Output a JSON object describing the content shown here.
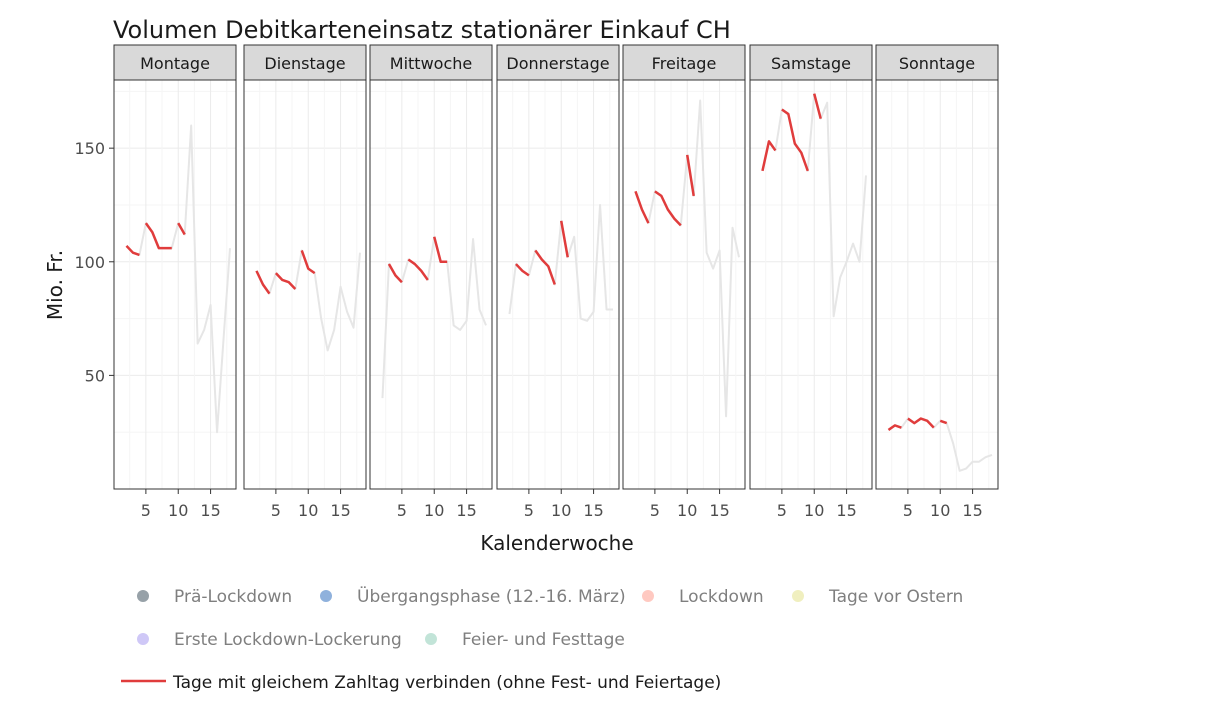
{
  "chart_data": {
    "type": "line",
    "title": "Volumen Debitkarteneinsatz stationärer Einkauf CH",
    "xlabel": "Kalenderwoche",
    "ylabel": "Mio. Fr.",
    "ylim": [
      0,
      180
    ],
    "xlim": [
      1,
      18
    ],
    "x_ticks": [
      5,
      10,
      15
    ],
    "y_ticks": [
      50,
      100,
      150
    ],
    "grid": true,
    "legend_placement": "bottom",
    "legend": [
      {
        "label": "Prä-Lockdown",
        "color": "#97a1a8"
      },
      {
        "label": "Übergangsphase (12.-16. März)",
        "color": "#8fb1dc"
      },
      {
        "label": "Lockdown",
        "color": "#ffc9c1"
      },
      {
        "label": "Tage vor Ostern",
        "color": "#f0efbf"
      },
      {
        "label": "Erste Lockdown-Lockerung",
        "color": "#cfc8f7"
      },
      {
        "label": "Feier- und Festtage",
        "color": "#c2e4d8"
      }
    ],
    "line_legend": {
      "label": "Tage mit gleichem Zahltag  verbinden (ohne Fest- und Feiertage)",
      "color": "#e03c3c"
    },
    "colors": {
      "background_series": "#e6e6e6",
      "highlight": "#e03c3c",
      "strip": "#d9d9d9"
    },
    "facets": [
      {
        "label": "Montage",
        "series": {
          "x": [
            2,
            3,
            4,
            5,
            6,
            7,
            8,
            9,
            10,
            11,
            12,
            13,
            14,
            15,
            16,
            17,
            18
          ],
          "y": [
            107,
            104,
            103,
            117,
            113,
            106,
            106,
            106,
            117,
            112,
            160,
            64,
            70,
            81,
            25,
            66,
            106
          ]
        },
        "highlights": [
          {
            "x": [
              2,
              3,
              4
            ],
            "y": [
              107,
              104,
              103
            ]
          },
          {
            "x": [
              5,
              6,
              7,
              8,
              9
            ],
            "y": [
              117,
              113,
              106,
              106,
              106
            ]
          },
          {
            "x": [
              10,
              11
            ],
            "y": [
              117,
              112
            ]
          }
        ]
      },
      {
        "label": "Dienstage",
        "series": {
          "x": [
            2,
            3,
            4,
            5,
            6,
            7,
            8,
            9,
            10,
            11,
            12,
            13,
            14,
            15,
            16,
            17,
            18
          ],
          "y": [
            96,
            90,
            86,
            95,
            92,
            91,
            88,
            105,
            97,
            95,
            75,
            61,
            70,
            89,
            78,
            71,
            104
          ]
        },
        "highlights": [
          {
            "x": [
              2,
              3,
              4
            ],
            "y": [
              96,
              90,
              86
            ]
          },
          {
            "x": [
              5,
              6,
              7,
              8
            ],
            "y": [
              95,
              92,
              91,
              88
            ]
          },
          {
            "x": [
              9,
              10,
              11
            ],
            "y": [
              105,
              97,
              95
            ]
          }
        ]
      },
      {
        "label": "Mittwoche",
        "series": {
          "x": [
            2,
            3,
            4,
            5,
            6,
            7,
            8,
            9,
            10,
            11,
            12,
            13,
            14,
            15,
            16,
            17,
            18
          ],
          "y": [
            40,
            99,
            94,
            91,
            101,
            99,
            96,
            92,
            111,
            100,
            100,
            72,
            70,
            74,
            110,
            79,
            72
          ]
        },
        "highlights": [
          {
            "x": [
              3,
              4,
              5
            ],
            "y": [
              99,
              94,
              91
            ]
          },
          {
            "x": [
              6,
              7,
              8,
              9
            ],
            "y": [
              101,
              99,
              96,
              92
            ]
          },
          {
            "x": [
              10,
              11,
              12
            ],
            "y": [
              111,
              100,
              100
            ]
          }
        ]
      },
      {
        "label": "Donnerstage",
        "series": {
          "x": [
            2,
            3,
            4,
            5,
            6,
            7,
            8,
            9,
            10,
            11,
            12,
            13,
            14,
            15,
            16,
            17,
            18
          ],
          "y": [
            77,
            99,
            96,
            94,
            105,
            101,
            98,
            90,
            118,
            102,
            111,
            75,
            74,
            78,
            125,
            79,
            79
          ]
        },
        "highlights": [
          {
            "x": [
              3,
              4,
              5
            ],
            "y": [
              99,
              96,
              94
            ]
          },
          {
            "x": [
              6,
              7,
              8,
              9
            ],
            "y": [
              105,
              101,
              98,
              90
            ]
          },
          {
            "x": [
              10,
              11
            ],
            "y": [
              118,
              102
            ]
          }
        ]
      },
      {
        "label": "Freitage",
        "series": {
          "x": [
            2,
            3,
            4,
            5,
            6,
            7,
            8,
            9,
            10,
            11,
            12,
            13,
            14,
            15,
            16,
            17,
            18
          ],
          "y": [
            131,
            123,
            117,
            131,
            129,
            123,
            119,
            116,
            147,
            129,
            171,
            104,
            97,
            105,
            32,
            115,
            102
          ]
        },
        "highlights": [
          {
            "x": [
              2,
              3,
              4
            ],
            "y": [
              131,
              123,
              117
            ]
          },
          {
            "x": [
              5,
              6,
              7,
              8,
              9
            ],
            "y": [
              131,
              129,
              123,
              119,
              116
            ]
          },
          {
            "x": [
              10,
              11
            ],
            "y": [
              147,
              129
            ]
          }
        ]
      },
      {
        "label": "Samstage",
        "series": {
          "x": [
            2,
            3,
            4,
            5,
            6,
            7,
            8,
            9,
            10,
            11,
            12,
            13,
            14,
            15,
            16,
            17,
            18
          ],
          "y": [
            140,
            153,
            149,
            167,
            165,
            152,
            148,
            140,
            174,
            163,
            170,
            76,
            93,
            100,
            108,
            100,
            138
          ]
        },
        "highlights": [
          {
            "x": [
              2,
              3,
              4
            ],
            "y": [
              140,
              153,
              149
            ]
          },
          {
            "x": [
              5,
              6,
              7,
              8,
              9
            ],
            "y": [
              167,
              165,
              152,
              148,
              140
            ]
          },
          {
            "x": [
              10,
              11
            ],
            "y": [
              174,
              163
            ]
          }
        ]
      },
      {
        "label": "Sonntage",
        "series": {
          "x": [
            2,
            3,
            4,
            5,
            6,
            7,
            8,
            9,
            10,
            11,
            12,
            13,
            14,
            15,
            16,
            17,
            18
          ],
          "y": [
            26,
            28,
            27,
            31,
            29,
            31,
            30,
            27,
            30,
            29,
            20,
            8,
            9,
            12,
            12,
            14,
            15
          ]
        },
        "highlights": [
          {
            "x": [
              2,
              3,
              4
            ],
            "y": [
              26,
              28,
              27
            ]
          },
          {
            "x": [
              5,
              6,
              7,
              8,
              9
            ],
            "y": [
              31,
              29,
              31,
              30,
              27
            ]
          },
          {
            "x": [
              10,
              11
            ],
            "y": [
              30,
              29
            ]
          }
        ]
      }
    ]
  }
}
